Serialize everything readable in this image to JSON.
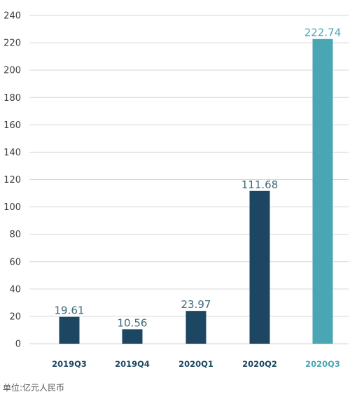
{
  "chart_data": {
    "type": "bar",
    "categories": [
      "2019Q3",
      "2019Q4",
      "2020Q1",
      "2020Q2",
      "2020Q3"
    ],
    "values": [
      19.61,
      10.56,
      23.97,
      111.68,
      222.74
    ],
    "value_labels": [
      "19.61",
      "10.56",
      "23.97",
      "111.68",
      "222.74"
    ],
    "yticks": [
      "0",
      "20",
      "40",
      "60",
      "80",
      "100",
      "120",
      "140",
      "160",
      "180",
      "200",
      "220",
      "240"
    ],
    "ylim": [
      0,
      240
    ],
    "grid": true,
    "highlight_index": 4,
    "unit": "单位:亿元人民币"
  },
  "colors": {
    "bar": "#1c4661",
    "highlight": "#4aa6b3",
    "grid": "#d6d6d6",
    "label": "#3e6a7e",
    "category": "#1c4661"
  }
}
